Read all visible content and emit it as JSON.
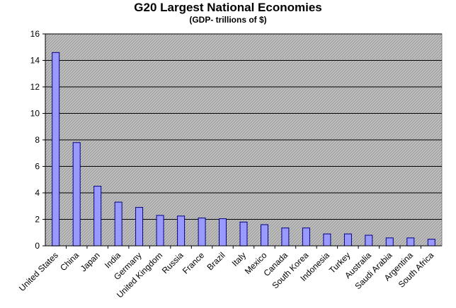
{
  "chart_data": {
    "type": "bar",
    "title": "G20 Largest National Economies",
    "subtitle": "(GDP- trillions of $)",
    "xlabel": "",
    "ylabel": "",
    "categories": [
      "United States",
      "China",
      "Japan",
      "India",
      "Germany",
      "United Kingdom",
      "Russia",
      "France",
      "Brazil",
      "Italy",
      "Mexico",
      "Canada",
      "South Korea",
      "Indonesia",
      "Turkey",
      "Australia",
      "Saudi Arabia",
      "Argentina",
      "South Africa"
    ],
    "values": [
      14.6,
      7.8,
      4.5,
      3.3,
      2.9,
      2.3,
      2.25,
      2.1,
      2.05,
      1.8,
      1.6,
      1.35,
      1.35,
      0.9,
      0.9,
      0.8,
      0.6,
      0.6,
      0.5
    ],
    "ylim": [
      0,
      16
    ],
    "yticks": [
      0,
      2,
      4,
      6,
      8,
      10,
      12,
      14,
      16
    ],
    "grid": true,
    "legend": "none",
    "colors": {
      "bar_fill": "#9999ff",
      "bar_stroke": "#000080",
      "plot_background": "#c0c0c0",
      "hatch": "#999999",
      "gridline": "#000000"
    }
  }
}
